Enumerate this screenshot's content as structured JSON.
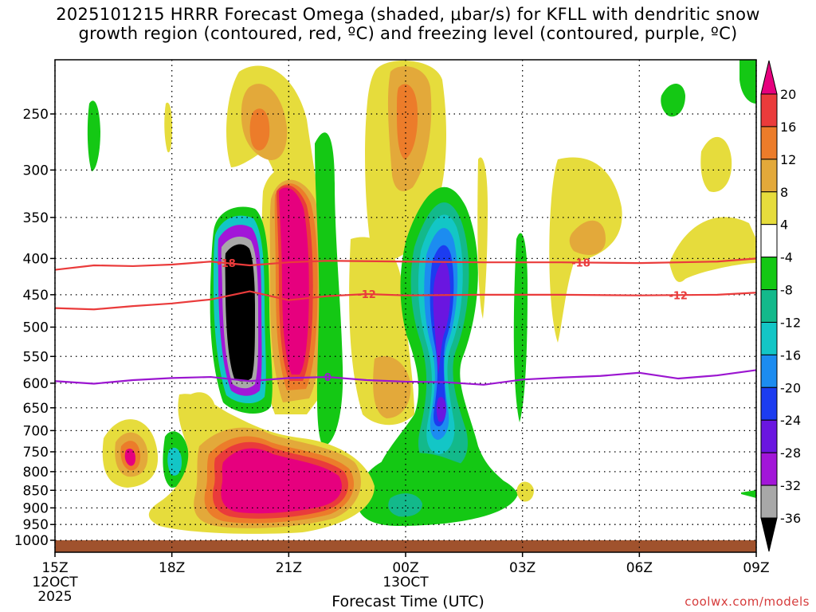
{
  "title": {
    "line1": "2025101215 HRRR Forecast Omega (shaded, μbar/s) for KFLL with dendritic snow",
    "line2": "growth region (contoured, red, ºC) and freezing level (contoured, purple, ºC)"
  },
  "chart_data": {
    "type": "heatmap",
    "title": "2025101215 HRRR Forecast Omega (shaded, μbar/s) for KFLL with dendritic snow growth region (contoured, red, ºC) and freezing level (contoured, purple, ºC)",
    "xlabel": "Forecast Time (UTC)",
    "ylabel": "",
    "x_hours": [
      15,
      18,
      21,
      24,
      27,
      30,
      33
    ],
    "x_ticks": [
      {
        "label": "15Z",
        "hour": 15,
        "sub1": "12OCT",
        "sub2": "2025"
      },
      {
        "label": "18Z",
        "hour": 18,
        "sub1": "",
        "sub2": ""
      },
      {
        "label": "21Z",
        "hour": 21,
        "sub1": "",
        "sub2": ""
      },
      {
        "label": "00Z",
        "hour": 24,
        "sub1": "13OCT",
        "sub2": ""
      },
      {
        "label": "03Z",
        "hour": 27,
        "sub1": "",
        "sub2": ""
      },
      {
        "label": "06Z",
        "hour": 30,
        "sub1": "",
        "sub2": ""
      },
      {
        "label": "09Z",
        "hour": 33,
        "sub1": "",
        "sub2": ""
      }
    ],
    "y_ticks": [
      250,
      300,
      350,
      400,
      450,
      500,
      550,
      600,
      650,
      700,
      750,
      800,
      850,
      900,
      950,
      1000
    ],
    "ylim_hpa": [
      200,
      1013
    ],
    "xlim_hours": [
      15,
      33
    ],
    "colorbar": {
      "labels": [
        "20",
        "16",
        "12",
        "8",
        "4",
        "-4",
        "-8",
        "-12",
        "-16",
        "-20",
        "-24",
        "-28",
        "-32",
        "-36"
      ],
      "bins": [
        {
          "range": ">20",
          "color": "#e6007e"
        },
        {
          "range": "16 to 20",
          "color": "#ea3b3b"
        },
        {
          "range": "12 to 16",
          "color": "#ec7c2a"
        },
        {
          "range": "8 to 12",
          "color": "#e3a93a"
        },
        {
          "range": "4 to 8",
          "color": "#e6dc3c"
        },
        {
          "range": "-4 to 4",
          "color": "#ffffff"
        },
        {
          "range": "-8 to -4",
          "color": "#14c814"
        },
        {
          "range": "-12 to -8",
          "color": "#13b98b"
        },
        {
          "range": "-16 to -12",
          "color": "#13c6c6"
        },
        {
          "range": "-20 to -16",
          "color": "#1c8cf0"
        },
        {
          "range": "-24 to -20",
          "color": "#1c3cf0"
        },
        {
          "range": "-28 to -24",
          "color": "#6a16e0"
        },
        {
          "range": "-32 to -28",
          "color": "#a216d8"
        },
        {
          "range": "-36 to -32",
          "color": "#a8a8a8"
        },
        {
          "range": "<-36",
          "color": "#000000"
        }
      ]
    },
    "contours": [
      {
        "name": "-18 isotherm",
        "label": "-18",
        "color": "#ea3b3b",
        "points": [
          [
            15,
            415
          ],
          [
            16,
            409
          ],
          [
            17,
            410
          ],
          [
            18,
            408
          ],
          [
            19,
            404
          ],
          [
            20,
            409
          ],
          [
            21,
            405
          ],
          [
            22,
            403
          ],
          [
            24,
            404
          ],
          [
            26,
            405
          ],
          [
            28,
            405
          ],
          [
            30,
            406
          ],
          [
            32,
            404
          ],
          [
            33,
            400
          ]
        ],
        "label_hours": [
          19.4,
          28.5
        ]
      },
      {
        "name": "-12 isotherm",
        "label": "-12",
        "color": "#ea3b3b",
        "points": [
          [
            15,
            470
          ],
          [
            16,
            472
          ],
          [
            17,
            467
          ],
          [
            18,
            463
          ],
          [
            19,
            457
          ],
          [
            20,
            445
          ],
          [
            21,
            458
          ],
          [
            22,
            452
          ],
          [
            23,
            449
          ],
          [
            24,
            451
          ],
          [
            26,
            450
          ],
          [
            28,
            450
          ],
          [
            30,
            451
          ],
          [
            32,
            450
          ],
          [
            33,
            447
          ]
        ],
        "label_hours": [
          23.0,
          31.0
        ]
      },
      {
        "name": "0 isotherm (freezing level)",
        "label": "0",
        "color": "#9b16d0",
        "points": [
          [
            15,
            596
          ],
          [
            16,
            601
          ],
          [
            17,
            594
          ],
          [
            18,
            590
          ],
          [
            19,
            588
          ],
          [
            20,
            596
          ],
          [
            21,
            590
          ],
          [
            22,
            588
          ],
          [
            23,
            594
          ],
          [
            24,
            597
          ],
          [
            25,
            598
          ],
          [
            26,
            603
          ],
          [
            27,
            593
          ],
          [
            28,
            589
          ],
          [
            29,
            586
          ],
          [
            30,
            580
          ],
          [
            31,
            591
          ],
          [
            32,
            585
          ],
          [
            33,
            575
          ]
        ],
        "label_hours": [
          22.0
        ]
      }
    ],
    "shaded_features": [
      {
        "desc": "strong descent max (>20)",
        "hour": 21.4,
        "hpa": [
          340,
          590
        ],
        "max": 20
      },
      {
        "desc": "strong ascent core (<-36)",
        "hour": 19.9,
        "hpa": [
          380,
          600
        ],
        "min": -36
      },
      {
        "desc": "low-level descent max (>20)",
        "hour": 21.0,
        "hpa": [
          740,
          960
        ],
        "max": 20
      },
      {
        "desc": "ascent column (-32)",
        "hour": 25.0,
        "hpa": [
          320,
          800
        ],
        "min": -32
      },
      {
        "desc": "upper descent (12)",
        "hour": 23.9,
        "hpa": [
          220,
          320
        ],
        "max": 12
      }
    ]
  },
  "credit": "coolwx.com/models"
}
